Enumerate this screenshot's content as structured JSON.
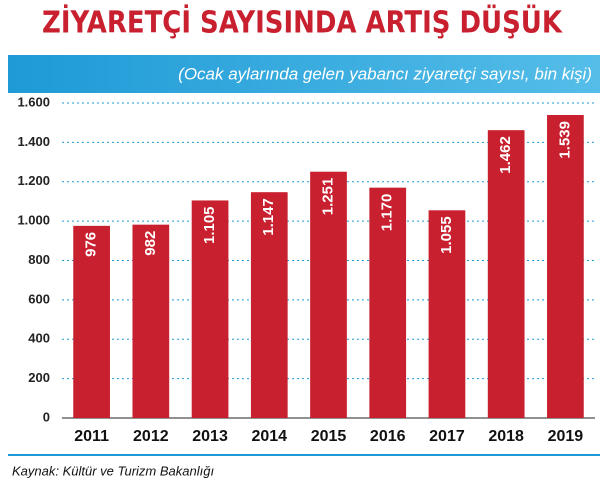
{
  "chart_data": {
    "type": "bar",
    "title": "ZİYARETÇİ SAYISINDA ARTIŞ DÜŞÜK",
    "subtitle": "(Ocak aylarında gelen yabancı ziyaretçi sayısı, bin kişi)",
    "source": "Kaynak: Kültür ve Turizm Bakanlığı",
    "categories": [
      "2011",
      "2012",
      "2013",
      "2014",
      "2015",
      "2016",
      "2017",
      "2018",
      "2019"
    ],
    "values": [
      976,
      982,
      1105,
      1147,
      1251,
      1170,
      1055,
      1462,
      1539
    ],
    "value_labels": [
      "976",
      "982",
      "1.105",
      "1.147",
      "1.251",
      "1.170",
      "1.055",
      "1.462",
      "1.539"
    ],
    "color": "#c8202f",
    "ylim": [
      0,
      1600
    ],
    "yticks": [
      0,
      200,
      400,
      600,
      800,
      {
        "value": 1000,
        "label": "1.000"
      },
      {
        "value": 1200,
        "label": "1.200"
      },
      {
        "value": 1400,
        "label": "1.400"
      },
      {
        "value": 1600,
        "label": "1.600"
      }
    ],
    "grid": true
  }
}
